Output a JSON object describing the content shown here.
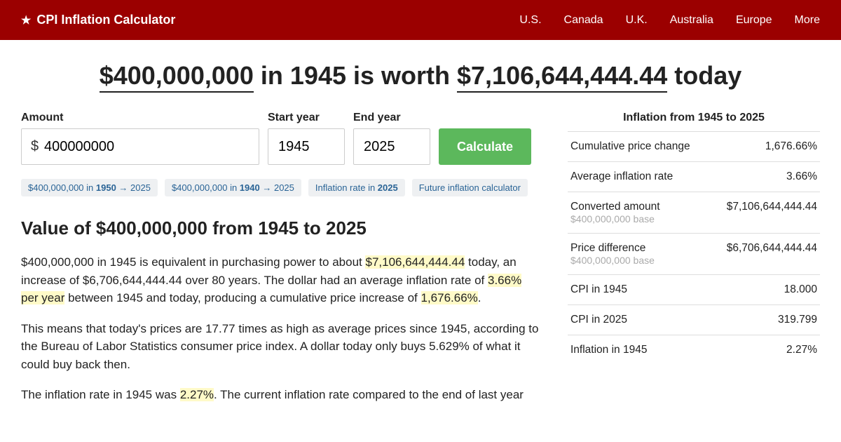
{
  "header": {
    "logo": "CPI Inflation Calculator",
    "nav": [
      "U.S.",
      "Canada",
      "U.K.",
      "Australia",
      "Europe",
      "More"
    ]
  },
  "headline": {
    "amount1": "$400,000,000",
    "mid1": " in 1945 is worth ",
    "amount2": "$7,106,644,444.44",
    "tail": " today"
  },
  "form": {
    "amount_label": "Amount",
    "amount_value": "400000000",
    "start_label": "Start year",
    "start_value": "1945",
    "end_label": "End year",
    "end_value": "2025",
    "button": "Calculate"
  },
  "chips": {
    "c1a": "$400,000,000 in ",
    "c1b": "1950",
    "c1c": " → 2025",
    "c2a": "$400,000,000 in ",
    "c2b": "1940",
    "c2c": " → 2025",
    "c3a": "Inflation rate in ",
    "c3b": "2025",
    "c4": "Future inflation calculator"
  },
  "section_heading": "Value of $400,000,000 from 1945 to 2025",
  "para1": {
    "t1": "$400,000,000 in 1945 is equivalent in purchasing power to about ",
    "h1": "$7,106,644,444.44",
    "t2": " today, an increase of $6,706,644,444.44 over 80 years. The dollar had an average inflation rate of ",
    "h2": "3.66% per year",
    "t3": " between 1945 and today, producing a cumulative price increase of ",
    "h3": "1,676.66%",
    "t4": "."
  },
  "para2": "This means that today's prices are 17.77 times as high as average prices since 1945, according to the Bureau of Labor Statistics consumer price index. A dollar today only buys 5.629% of what it could buy back then.",
  "para3": {
    "t1": "The inflation rate in 1945 was ",
    "h1": "2.27%",
    "t2": ". The current inflation rate compared to the end of last year"
  },
  "sidebar": {
    "title": "Inflation from 1945 to 2025",
    "base_sub": "$400,000,000 base",
    "rows": [
      {
        "label": "Cumulative price change",
        "value": "1,676.66%"
      },
      {
        "label": "Average inflation rate",
        "value": "3.66%"
      },
      {
        "label": "Converted amount",
        "value": "$7,106,644,444.44",
        "sub": true
      },
      {
        "label": "Price difference",
        "value": "$6,706,644,444.44",
        "sub": true
      },
      {
        "label": "CPI in 1945",
        "value": "18.000"
      },
      {
        "label": "CPI in 2025",
        "value": "319.799"
      },
      {
        "label": "Inflation in 1945",
        "value": "2.27%"
      }
    ]
  }
}
